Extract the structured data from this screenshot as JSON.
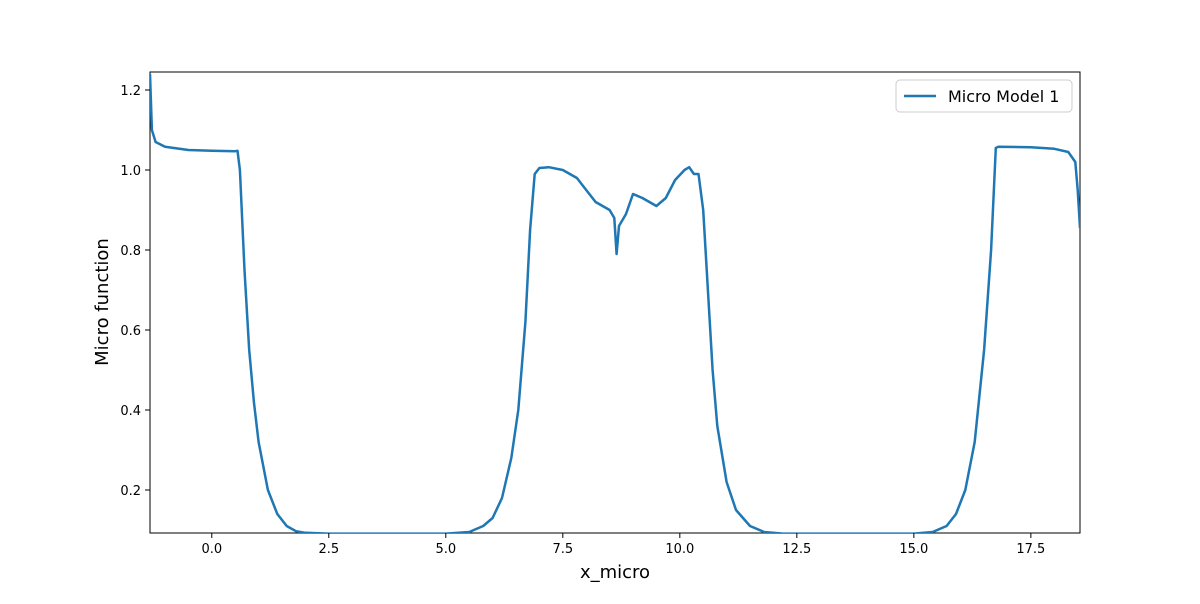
{
  "chart_data": {
    "type": "line",
    "x_label": "x_micro",
    "y_label": "Micro function",
    "x": [
      -1.32,
      -1.28,
      -1.2,
      -1.0,
      -0.5,
      0,
      0.5,
      0.55,
      0.6,
      0.7,
      0.8,
      0.9,
      1.0,
      1.2,
      1.4,
      1.6,
      1.8,
      2.0,
      2.5,
      5.0,
      5.5,
      5.8,
      6.0,
      6.2,
      6.4,
      6.55,
      6.7,
      6.8,
      6.9,
      7.0,
      7.2,
      7.5,
      7.8,
      8.0,
      8.2,
      8.5,
      8.6,
      8.65,
      8.7,
      8.85,
      9.0,
      9.2,
      9.5,
      9.7,
      9.9,
      10.1,
      10.2,
      10.3,
      10.4,
      10.5,
      10.6,
      10.7,
      10.8,
      11.0,
      11.2,
      11.5,
      11.8,
      12.2,
      15.0,
      15.4,
      15.7,
      15.9,
      16.1,
      16.3,
      16.5,
      16.65,
      16.75,
      16.8,
      17.5,
      18.0,
      18.3,
      18.45,
      18.5,
      18.55
    ],
    "series": [
      {
        "name": "Micro Model 1",
        "color": "#1f77b4",
        "values": [
          1.24,
          1.1,
          1.07,
          1.058,
          1.05,
          1.048,
          1.047,
          1.048,
          1.0,
          0.75,
          0.55,
          0.42,
          0.32,
          0.2,
          0.14,
          0.11,
          0.097,
          0.093,
          0.091,
          0.091,
          0.095,
          0.11,
          0.13,
          0.18,
          0.28,
          0.4,
          0.62,
          0.85,
          0.99,
          1.005,
          1.007,
          1.0,
          0.98,
          0.95,
          0.92,
          0.9,
          0.88,
          0.79,
          0.86,
          0.89,
          0.94,
          0.93,
          0.91,
          0.93,
          0.975,
          1.0,
          1.007,
          0.99,
          0.99,
          0.9,
          0.7,
          0.5,
          0.36,
          0.22,
          0.15,
          0.11,
          0.095,
          0.091,
          0.091,
          0.095,
          0.11,
          0.14,
          0.2,
          0.32,
          0.55,
          0.8,
          1.055,
          1.058,
          1.057,
          1.053,
          1.045,
          1.02,
          0.95,
          0.855
        ]
      }
    ],
    "xlim": [
      -1.32,
      18.55
    ],
    "ylim": [
      0.0925,
      1.245
    ],
    "xticks": [
      {
        "value": 0,
        "label": "0.0"
      },
      2.5,
      {
        "value": 5,
        "label": "5.0"
      },
      7.5,
      {
        "value": 10,
        "label": "10.0"
      },
      12.5,
      {
        "value": 15,
        "label": "15.0"
      },
      17.5
    ],
    "yticks": [
      0.2,
      0.4,
      0.6,
      0.8,
      {
        "value": 1,
        "label": "1.0"
      },
      1.2
    ],
    "legend": "upper right",
    "grid": false
  }
}
